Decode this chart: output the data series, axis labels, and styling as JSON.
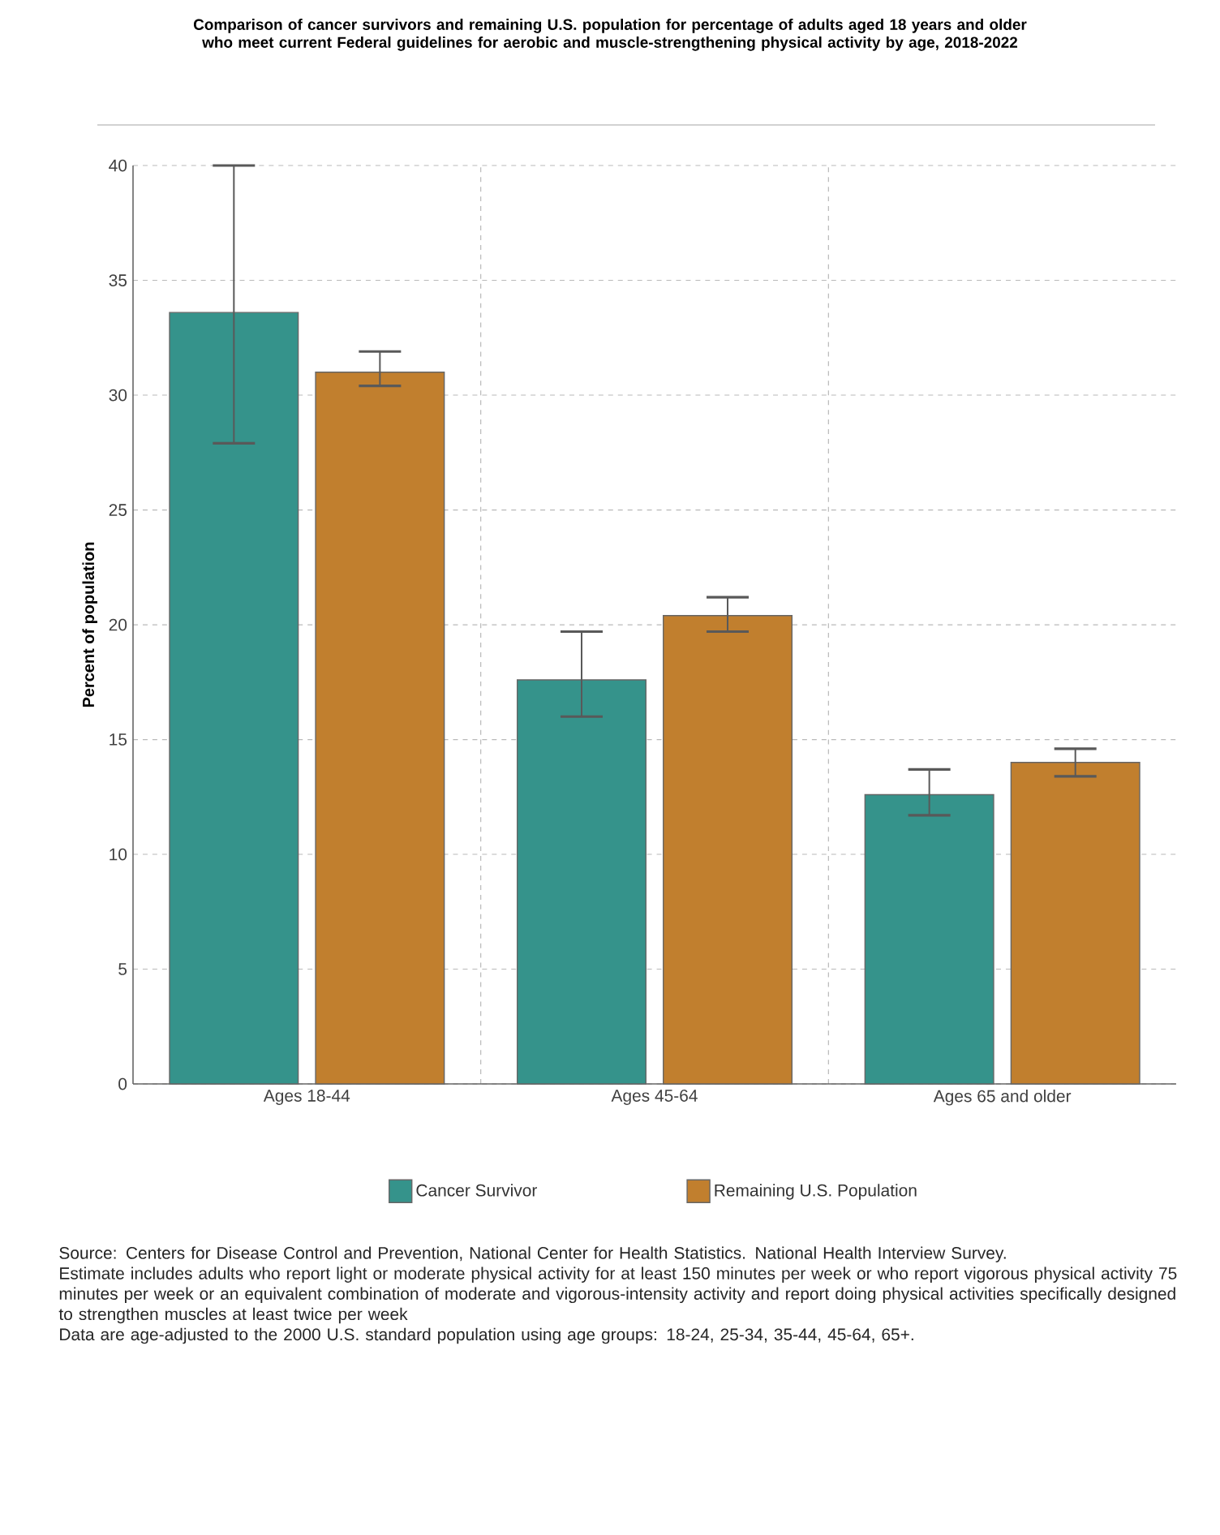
{
  "chart_data": {
    "type": "bar",
    "title": "Comparison of cancer survivors and remaining U.S. population for percentage of adults aged 18 years and older who meet current Federal guidelines for aerobic and muscle-strengthening physical activity by age,  2018-2022",
    "ylabel": "Percent of population",
    "categories": [
      "Ages 18-44",
      "Ages 45-64",
      "Ages 65 and older"
    ],
    "series": [
      {
        "name": "Cancer Survivor",
        "color": "#35938b",
        "values": [
          33.6,
          17.6,
          12.6
        ],
        "errors": [
          [
            27.9,
            40.0
          ],
          [
            16.0,
            19.7
          ],
          [
            11.7,
            13.7
          ]
        ]
      },
      {
        "name": "Remaining U.S. Population",
        "color": "#c17f2e",
        "values": [
          31.0,
          20.4,
          14.0
        ],
        "errors": [
          [
            30.4,
            31.9
          ],
          [
            19.7,
            21.2
          ],
          [
            13.4,
            14.6
          ]
        ]
      }
    ],
    "ylim": [
      0,
      40
    ],
    "yticks": [
      0,
      5,
      10,
      15,
      20,
      25,
      30,
      35,
      40
    ],
    "grid": true,
    "legend": "bottom",
    "annotations": [
      "Source: Centers for Disease Control and Prevention, National Center for Health Statistics. National Health Interview Survey.",
      "Estimate includes adults who report light or moderate physical activity for at least 150 minutes per week or who report vigorous physical activity 75 minutes per week or an equivalent combination of moderate and vigorous-intensity activity and report doing physical activities specifically designed to strengthen muscles at least twice per week",
      "Data are age-adjusted to the 2000 U.S. standard population using age groups: 18-24, 25-34, 35-44, 45-64, 65+."
    ]
  }
}
